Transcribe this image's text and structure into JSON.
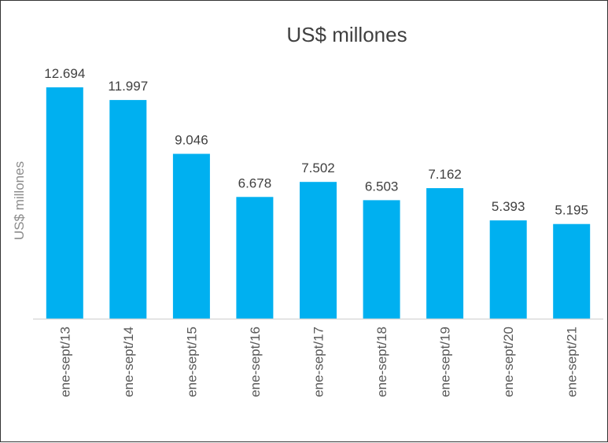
{
  "chart_data": {
    "type": "bar",
    "title": "US$ millones",
    "xlabel": "",
    "ylabel": "US$ millones",
    "categories": [
      "ene-sept/13",
      "ene-sept/14",
      "ene-sept/15",
      "ene-sept/16",
      "ene-sept/17",
      "ene-sept/18",
      "ene-sept/19",
      "ene-sept/20",
      "ene-sept/21"
    ],
    "values": [
      12694,
      11997,
      9046,
      6678,
      7502,
      6503,
      7162,
      5393,
      5195
    ],
    "value_labels": [
      "12.694",
      "11.997",
      "9.046",
      "6.678",
      "7.502",
      "6.503",
      "7.162",
      "5.393",
      "5.195"
    ],
    "ylim": [
      0,
      12694
    ],
    "grid": false,
    "legend": "none",
    "bar_color": "#00b0f0",
    "axis_color": "#d9d9d9"
  }
}
